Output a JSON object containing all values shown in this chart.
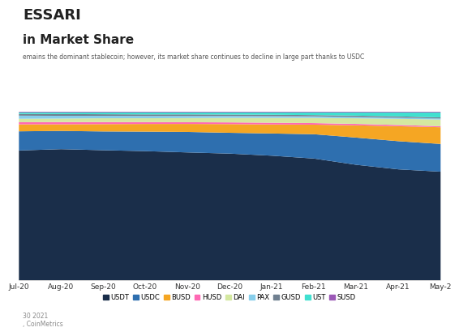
{
  "title_main": "ESSARI",
  "title_sub": "in Market Share",
  "subtitle": "emains the dominant stablecoin; however, its market share continues to decline in large part thanks to USDC",
  "footer": "30 2021\n, CoinMetrics",
  "background_color": "#ffffff",
  "plot_bg": "#ffffff",
  "series": [
    "USDT",
    "USDC",
    "BUSD",
    "HUSD",
    "DAI",
    "PAX",
    "GUSD",
    "UST",
    "SUSD"
  ],
  "colors": [
    "#1a2e4a",
    "#2e6faf",
    "#f5a623",
    "#ff69b4",
    "#d4e8a0",
    "#87ceeb",
    "#708090",
    "#40e0d0",
    "#9b59b6"
  ],
  "x_labels": [
    "Jul-20",
    "Aug-20",
    "Sep-20",
    "Oct-20",
    "Nov-20",
    "Dec-20",
    "Jan-21",
    "Feb-21",
    "Mar-21",
    "Apr-21",
    "May-2"
  ],
  "n_points": 11,
  "USDT": [
    0.745,
    0.755,
    0.748,
    0.742,
    0.736,
    0.73,
    0.718,
    0.7,
    0.658,
    0.63,
    0.618
  ],
  "USDC": [
    0.11,
    0.105,
    0.108,
    0.112,
    0.118,
    0.12,
    0.128,
    0.14,
    0.155,
    0.16,
    0.158
  ],
  "BUSD": [
    0.04,
    0.038,
    0.042,
    0.044,
    0.046,
    0.05,
    0.052,
    0.055,
    0.07,
    0.085,
    0.095
  ],
  "HUSD": [
    0.012,
    0.013,
    0.012,
    0.011,
    0.01,
    0.01,
    0.01,
    0.009,
    0.008,
    0.007,
    0.006
  ],
  "DAI": [
    0.02,
    0.02,
    0.022,
    0.022,
    0.024,
    0.026,
    0.028,
    0.03,
    0.032,
    0.035,
    0.038
  ],
  "PAX": [
    0.018,
    0.016,
    0.014,
    0.013,
    0.012,
    0.011,
    0.01,
    0.009,
    0.008,
    0.007,
    0.006
  ],
  "GUSD": [
    0.01,
    0.01,
    0.009,
    0.009,
    0.009,
    0.008,
    0.008,
    0.007,
    0.007,
    0.007,
    0.006
  ],
  "UST": [
    0.008,
    0.009,
    0.01,
    0.011,
    0.011,
    0.012,
    0.013,
    0.015,
    0.018,
    0.022,
    0.028
  ],
  "SUSD": [
    0.004,
    0.004,
    0.004,
    0.004,
    0.004,
    0.004,
    0.004,
    0.004,
    0.004,
    0.004,
    0.004
  ]
}
